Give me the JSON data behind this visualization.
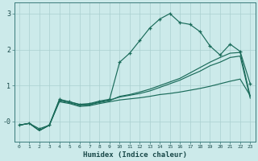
{
  "xlabel": "Humidex (Indice chaleur)",
  "bg_color": "#cceaea",
  "grid_color": "#aad0d0",
  "line_color": "#1a6b5a",
  "xlim": [
    -0.5,
    23.5
  ],
  "ylim": [
    -0.55,
    3.3
  ],
  "xticks": [
    0,
    1,
    2,
    3,
    4,
    5,
    6,
    7,
    8,
    9,
    10,
    11,
    12,
    13,
    14,
    15,
    16,
    17,
    18,
    19,
    20,
    21,
    22,
    23
  ],
  "yticks": [
    1,
    2,
    3
  ],
  "ytick_labels": [
    "1",
    "2",
    "3"
  ],
  "ytick_zero_label": "-0",
  "ytick_zero_val": -0.05,
  "line_marker_x": [
    0,
    1,
    2,
    3,
    4,
    5,
    6,
    7,
    8,
    9,
    10,
    11,
    12,
    13,
    14,
    15,
    16,
    17,
    18,
    19,
    20,
    21,
    22,
    23
  ],
  "line_marker_y": [
    -0.1,
    -0.05,
    -0.2,
    -0.1,
    0.62,
    0.55,
    0.48,
    0.5,
    0.57,
    0.62,
    1.65,
    1.9,
    2.25,
    2.6,
    2.85,
    3.0,
    2.75,
    2.7,
    2.5,
    2.1,
    1.85,
    2.15,
    1.95,
    1.05
  ],
  "line2_x": [
    0,
    1,
    2,
    3,
    4,
    5,
    6,
    7,
    8,
    9,
    10,
    11,
    12,
    13,
    14,
    15,
    16,
    17,
    18,
    19,
    20,
    21,
    22,
    23
  ],
  "line2_y": [
    -0.1,
    -0.05,
    -0.25,
    -0.1,
    0.58,
    0.52,
    0.45,
    0.47,
    0.53,
    0.58,
    0.7,
    0.75,
    0.82,
    0.9,
    1.0,
    1.1,
    1.2,
    1.35,
    1.5,
    1.65,
    1.78,
    1.9,
    1.92,
    0.7
  ],
  "line3_x": [
    0,
    1,
    2,
    3,
    4,
    5,
    6,
    7,
    8,
    9,
    10,
    11,
    12,
    13,
    14,
    15,
    16,
    17,
    18,
    19,
    20,
    21,
    22,
    23
  ],
  "line3_y": [
    -0.1,
    -0.05,
    -0.25,
    -0.1,
    0.6,
    0.55,
    0.47,
    0.48,
    0.55,
    0.6,
    0.68,
    0.73,
    0.78,
    0.85,
    0.95,
    1.05,
    1.15,
    1.28,
    1.4,
    1.55,
    1.65,
    1.78,
    1.82,
    0.65
  ],
  "line4_x": [
    0,
    1,
    2,
    3,
    4,
    5,
    6,
    7,
    8,
    9,
    10,
    11,
    12,
    13,
    14,
    15,
    16,
    17,
    18,
    19,
    20,
    21,
    22,
    23
  ],
  "line4_y": [
    -0.1,
    -0.05,
    -0.25,
    -0.1,
    0.55,
    0.5,
    0.42,
    0.44,
    0.5,
    0.55,
    0.6,
    0.63,
    0.66,
    0.7,
    0.75,
    0.78,
    0.82,
    0.87,
    0.92,
    0.98,
    1.05,
    1.12,
    1.18,
    0.72
  ]
}
